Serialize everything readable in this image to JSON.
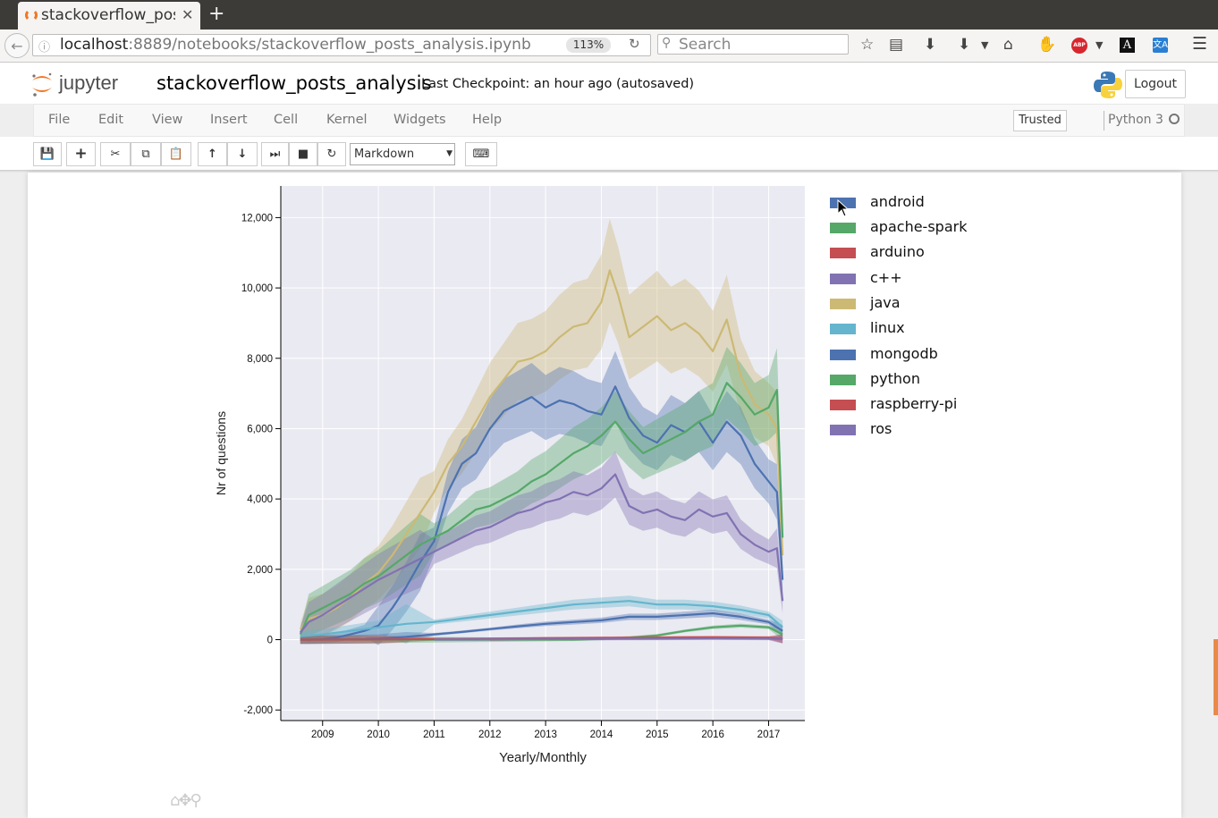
{
  "browser": {
    "tab_title": "stackoverflow_posts_analysis",
    "url_host": "localhost",
    "url_rest": ":8889/notebooks/stackoverflow_posts_analysis.ipynb",
    "zoom": "113%",
    "search_placeholder": "Search",
    "abp_label": "ABP",
    "font_label": "A",
    "translate_label": "文A"
  },
  "jupyter": {
    "logo_text": "jupyter",
    "notebook_name": "stackoverflow_posts_analysis",
    "checkpoint": "Last Checkpoint: an hour ago (autosaved)",
    "logout": "Logout",
    "menu": [
      "File",
      "Edit",
      "View",
      "Insert",
      "Cell",
      "Kernel",
      "Widgets",
      "Help"
    ],
    "trusted": "Trusted",
    "kernel_name": "Python 3",
    "cell_type": "Markdown"
  },
  "chart_data": {
    "type": "line",
    "xlabel": "Yearly/Monthly",
    "ylabel": "Nr of questions",
    "xlim": [
      2008.25,
      2017.65
    ],
    "ylim": [
      -2300,
      12900
    ],
    "x_ticks": [
      2009,
      2010,
      2011,
      2012,
      2013,
      2014,
      2015,
      2016,
      2017
    ],
    "y_ticks": [
      -2000,
      0,
      2000,
      4000,
      6000,
      8000,
      10000,
      12000
    ],
    "y_tick_labels": [
      "-2,000",
      "0",
      "2,000",
      "4,000",
      "6,000",
      "8,000",
      "10,000",
      "12,000"
    ],
    "legend_position": "right",
    "grid": true,
    "legend": [
      "android",
      "apache-spark",
      "arduino",
      "c++",
      "java",
      "linux",
      "mongodb",
      "python",
      "raspberry-pi",
      "ros"
    ],
    "series": [
      {
        "name": "java",
        "color": "#ccb974",
        "x": [
          2008.6,
          2008.75,
          2009.0,
          2009.25,
          2009.5,
          2009.75,
          2010.0,
          2010.25,
          2010.5,
          2010.75,
          2011.0,
          2011.25,
          2011.5,
          2011.75,
          2012.0,
          2012.25,
          2012.5,
          2012.75,
          2013.0,
          2013.25,
          2013.5,
          2013.75,
          2014.0,
          2014.15,
          2014.3,
          2014.5,
          2014.75,
          2015.0,
          2015.25,
          2015.5,
          2015.75,
          2016.0,
          2016.25,
          2016.5,
          2016.75,
          2017.0,
          2017.15,
          2017.25
        ],
        "y": [
          300,
          600,
          700,
          900,
          1200,
          1600,
          1900,
          2400,
          3000,
          3600,
          4200,
          5000,
          5500,
          6200,
          6900,
          7400,
          7900,
          8000,
          8200,
          8600,
          8900,
          9000,
          9600,
          10500,
          9800,
          8600,
          8900,
          9200,
          8800,
          9000,
          8700,
          8200,
          9100,
          7500,
          6700,
          6400,
          6000,
          2400
        ]
      },
      {
        "name": "android",
        "color": "#4c72b0",
        "x": [
          2008.6,
          2008.75,
          2009.0,
          2009.25,
          2009.5,
          2009.75,
          2010.0,
          2010.25,
          2010.5,
          2010.75,
          2011.0,
          2011.25,
          2011.5,
          2011.75,
          2012.0,
          2012.25,
          2012.5,
          2012.75,
          2013.0,
          2013.25,
          2013.5,
          2013.75,
          2014.0,
          2014.25,
          2014.5,
          2014.75,
          2015.0,
          2015.25,
          2015.5,
          2015.75,
          2016.0,
          2016.25,
          2016.5,
          2016.75,
          2017.0,
          2017.15,
          2017.25
        ],
        "y": [
          0,
          0,
          20,
          60,
          150,
          250,
          400,
          900,
          1500,
          2200,
          2800,
          4200,
          5000,
          5300,
          6000,
          6500,
          6700,
          6900,
          6600,
          6800,
          6700,
          6500,
          6400,
          7200,
          6300,
          5800,
          5600,
          6100,
          5900,
          6200,
          5600,
          6200,
          5800,
          5000,
          4500,
          4200,
          1700
        ]
      },
      {
        "name": "python",
        "color": "#55a868",
        "x": [
          2008.6,
          2008.75,
          2009.0,
          2009.25,
          2009.5,
          2009.75,
          2010.0,
          2010.25,
          2010.5,
          2010.75,
          2011.0,
          2011.25,
          2011.5,
          2011.75,
          2012.0,
          2012.25,
          2012.5,
          2012.75,
          2013.0,
          2013.25,
          2013.5,
          2013.75,
          2014.0,
          2014.25,
          2014.5,
          2014.75,
          2015.0,
          2015.25,
          2015.5,
          2015.75,
          2016.0,
          2016.25,
          2016.5,
          2016.75,
          2017.0,
          2017.15,
          2017.25
        ],
        "y": [
          150,
          700,
          900,
          1100,
          1300,
          1600,
          1800,
          2100,
          2400,
          2700,
          2900,
          3100,
          3400,
          3700,
          3800,
          4000,
          4200,
          4500,
          4700,
          5000,
          5300,
          5500,
          5800,
          6200,
          5700,
          5300,
          5500,
          5700,
          5900,
          6200,
          6400,
          7300,
          6900,
          6400,
          6600,
          7100,
          2900
        ]
      },
      {
        "name": "c++",
        "color": "#8172b2",
        "x": [
          2008.6,
          2008.75,
          2009.0,
          2009.25,
          2009.5,
          2009.75,
          2010.0,
          2010.25,
          2010.5,
          2010.75,
          2011.0,
          2011.25,
          2011.5,
          2011.75,
          2012.0,
          2012.25,
          2012.5,
          2012.75,
          2013.0,
          2013.25,
          2013.5,
          2013.75,
          2014.0,
          2014.25,
          2014.5,
          2014.75,
          2015.0,
          2015.25,
          2015.5,
          2015.75,
          2016.0,
          2016.25,
          2016.5,
          2016.75,
          2017.0,
          2017.15,
          2017.25
        ],
        "y": [
          200,
          500,
          700,
          950,
          1200,
          1450,
          1700,
          1900,
          2100,
          2300,
          2500,
          2700,
          2900,
          3100,
          3200,
          3400,
          3600,
          3700,
          3900,
          4000,
          4200,
          4100,
          4300,
          4700,
          3800,
          3600,
          3700,
          3500,
          3400,
          3700,
          3500,
          3600,
          3000,
          2700,
          2500,
          2600,
          1100
        ]
      },
      {
        "name": "linux",
        "color": "#64b5cd",
        "x": [
          2008.6,
          2009.0,
          2009.5,
          2010.0,
          2010.5,
          2011.0,
          2011.5,
          2012.0,
          2012.5,
          2013.0,
          2013.5,
          2014.0,
          2014.5,
          2015.0,
          2015.5,
          2016.0,
          2016.5,
          2017.0,
          2017.25
        ],
        "y": [
          100,
          150,
          250,
          350,
          450,
          500,
          600,
          700,
          800,
          900,
          1000,
          1050,
          1100,
          1000,
          1000,
          950,
          850,
          700,
          350
        ]
      },
      {
        "name": "mongodb",
        "color": "#4c72b0",
        "x": [
          2008.6,
          2009.0,
          2009.5,
          2010.0,
          2010.5,
          2011.0,
          2011.5,
          2012.0,
          2012.5,
          2013.0,
          2013.5,
          2014.0,
          2014.5,
          2015.0,
          2015.5,
          2016.0,
          2016.5,
          2017.0,
          2017.25
        ],
        "y": [
          0,
          0,
          10,
          30,
          80,
          150,
          220,
          300,
          380,
          450,
          500,
          550,
          650,
          650,
          700,
          750,
          650,
          500,
          250
        ]
      },
      {
        "name": "apache-spark",
        "color": "#55a868",
        "x": [
          2008.6,
          2013.5,
          2014.0,
          2014.5,
          2015.0,
          2015.5,
          2016.0,
          2016.5,
          2017.0,
          2017.25
        ],
        "y": [
          0,
          0,
          20,
          60,
          120,
          250,
          350,
          400,
          350,
          150
        ]
      },
      {
        "name": "arduino",
        "color": "#c44e52",
        "x": [
          2008.6,
          2010.0,
          2011.0,
          2012.0,
          2013.0,
          2014.0,
          2015.0,
          2016.0,
          2017.0,
          2017.25
        ],
        "y": [
          0,
          5,
          15,
          25,
          40,
          50,
          60,
          70,
          60,
          30
        ]
      },
      {
        "name": "raspberry-pi",
        "color": "#c44e52",
        "x": [
          2012.0,
          2013.0,
          2014.0,
          2015.0,
          2016.0,
          2017.0,
          2017.25
        ],
        "y": [
          10,
          20,
          30,
          40,
          50,
          40,
          20
        ]
      },
      {
        "name": "ros",
        "color": "#8172b2",
        "x": [
          2011.0,
          2012.0,
          2013.0,
          2014.0,
          2015.0,
          2016.0,
          2017.0,
          2017.25
        ],
        "y": [
          5,
          10,
          15,
          20,
          25,
          30,
          25,
          15
        ]
      }
    ]
  },
  "legend_colors": {
    "android": "#4c72b0",
    "apache-spark": "#55a868",
    "arduino": "#c44e52",
    "c++": "#8172b2",
    "java": "#ccb974",
    "linux": "#64b5cd",
    "mongodb": "#4c72b0",
    "python": "#55a868",
    "raspberry-pi": "#c44e52",
    "ros": "#8172b2"
  }
}
